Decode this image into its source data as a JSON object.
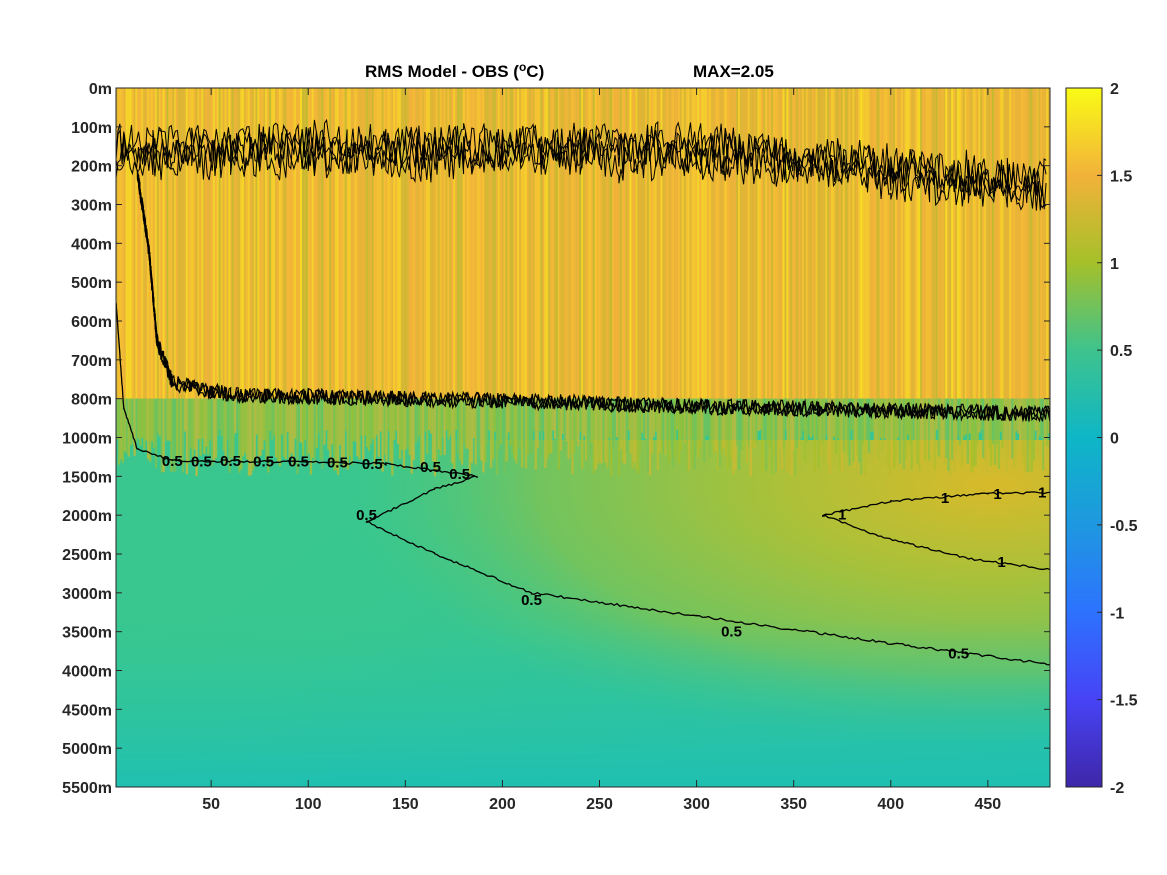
{
  "chart_data": {
    "type": "heatmap",
    "title": "RMS Model - OBS (",
    "title_unit_sup": "o",
    "title_unit_end": "C)",
    "max_label": "MAX=2.05",
    "colormap": "parula",
    "x": {
      "range": [
        1,
        482
      ],
      "ticks": [
        50,
        100,
        150,
        200,
        250,
        300,
        350,
        400,
        450
      ],
      "tick_labels": [
        "50",
        "100",
        "150",
        "200",
        "250",
        "300",
        "350",
        "400",
        "450"
      ]
    },
    "y": {
      "tick_labels": [
        "0m",
        "100m",
        "200m",
        "300m",
        "400m",
        "500m",
        "600m",
        "700m",
        "800m",
        "1000m",
        "1500m",
        "2000m",
        "2500m",
        "3000m",
        "3500m",
        "4000m",
        "4500m",
        "5000m",
        "5500m"
      ],
      "depths": [
        0,
        100,
        200,
        300,
        400,
        500,
        600,
        700,
        800,
        1000,
        1500,
        2000,
        2500,
        3000,
        3500,
        4000,
        4500,
        5000,
        5500
      ]
    },
    "colorbar": {
      "range": [
        -2,
        2
      ],
      "ticks": [
        2,
        1.5,
        1,
        0.5,
        0,
        -0.5,
        -1,
        -1.5,
        -2
      ],
      "tick_labels": [
        "2",
        "1.5",
        "1",
        "0.5",
        "0",
        "-0.5",
        "-1",
        "-1.5",
        "-2"
      ]
    },
    "field_regions": [
      {
        "name": "upper-layer",
        "depth_from": 0,
        "depth_to": 800,
        "value_min": 1.1,
        "value_max": 1.9
      },
      {
        "name": "transition",
        "depth_from": 800,
        "depth_to": 1500,
        "value_min": 0.4,
        "value_max": 1.3
      },
      {
        "name": "deep-left",
        "depth_from": 1500,
        "depth_to": 5500,
        "value_min": 0.2,
        "value_max": 0.55
      },
      {
        "name": "deep-right",
        "depth_from": 1800,
        "depth_to": 3500,
        "value_min": 0.6,
        "value_max": 1.15
      }
    ],
    "contour_levels": [
      0.5,
      1,
      1.5
    ],
    "contour_labels": [
      {
        "text": "0.5",
        "x": 30,
        "depth": 1300
      },
      {
        "text": "0.5",
        "x": 45,
        "depth": 1310
      },
      {
        "text": "0.5",
        "x": 60,
        "depth": 1300
      },
      {
        "text": "0.5",
        "x": 77,
        "depth": 1310
      },
      {
        "text": "0.5",
        "x": 95,
        "depth": 1310
      },
      {
        "text": "0.5",
        "x": 115,
        "depth": 1320
      },
      {
        "text": "0.5",
        "x": 133,
        "depth": 1340
      },
      {
        "text": "0.5",
        "x": 163,
        "depth": 1380
      },
      {
        "text": "0.5",
        "x": 178,
        "depth": 1470
      },
      {
        "text": "0.5",
        "x": 130,
        "depth": 2000
      },
      {
        "text": "0.5",
        "x": 215,
        "depth": 3090
      },
      {
        "text": "0.5",
        "x": 318,
        "depth": 3500
      },
      {
        "text": "0.5",
        "x": 435,
        "depth": 3780
      },
      {
        "text": "1",
        "x": 375,
        "depth": 1990
      },
      {
        "text": "1",
        "x": 428,
        "depth": 1780
      },
      {
        "text": "1",
        "x": 455,
        "depth": 1730
      },
      {
        "text": "1",
        "x": 478,
        "depth": 1710
      },
      {
        "text": "1",
        "x": 457,
        "depth": 2600
      }
    ]
  }
}
